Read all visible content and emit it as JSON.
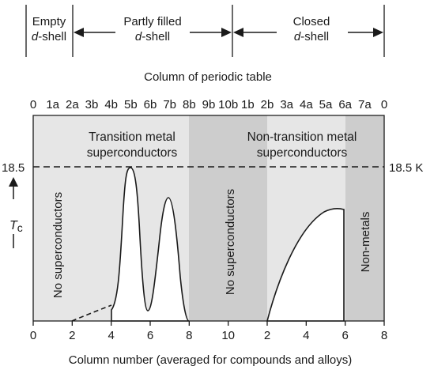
{
  "shell_bar": {
    "empty_line1": "Empty",
    "empty_line2": "d-shell",
    "partly_line1": "Partly filled",
    "partly_line2": "d-shell",
    "closed_line1": "Closed",
    "closed_line2": "d-shell"
  },
  "top_axis": {
    "title": "Column of periodic table",
    "ticks": [
      "0",
      "1a",
      "2a",
      "3b",
      "4b",
      "5b",
      "6b",
      "7b",
      "8b",
      "9b",
      "10b",
      "1b",
      "2b",
      "3a",
      "4a",
      "5a",
      "6a",
      "7a",
      "0"
    ]
  },
  "bottom_axis": {
    "title": "Column number (averaged for compounds and alloys)",
    "ticks": [
      "0",
      "2",
      "4",
      "6",
      "8",
      "10",
      "2",
      "4",
      "6",
      "8"
    ]
  },
  "y_axis": {
    "left_value": "18.5",
    "right_value": "18.5 K",
    "symbol": "T",
    "subscript": "c"
  },
  "regions": {
    "transition_line1": "Transition metal",
    "transition_line2": "superconductors",
    "non_transition_line1": "Non-transition metal",
    "non_transition_line2": "superconductors",
    "no_sc_left": "No superconductors",
    "no_sc_middle": "No superconductors",
    "non_metals": "Non-metals"
  },
  "colors": {
    "light_region": "#e6e6e6",
    "dark_region": "#cdcdcd",
    "curve_fill": "#ffffff",
    "line": "#1a1a1a"
  },
  "chart_data": {
    "type": "area",
    "xlim": [
      0,
      18
    ],
    "ylim_label": "18.5 K",
    "series": [
      {
        "x": [
          2,
          3,
          4,
          4.5,
          5,
          5.5,
          6,
          6.5,
          7,
          7.5,
          8
        ],
        "y": [
          0,
          0.5,
          1.3,
          8,
          18.5,
          10,
          0.5,
          8,
          14,
          7,
          0
        ]
      },
      {
        "x": [
          12,
          13,
          14,
          15,
          15.5,
          16
        ],
        "y": [
          0,
          8,
          12,
          14,
          14.3,
          14.2
        ]
      }
    ]
  }
}
